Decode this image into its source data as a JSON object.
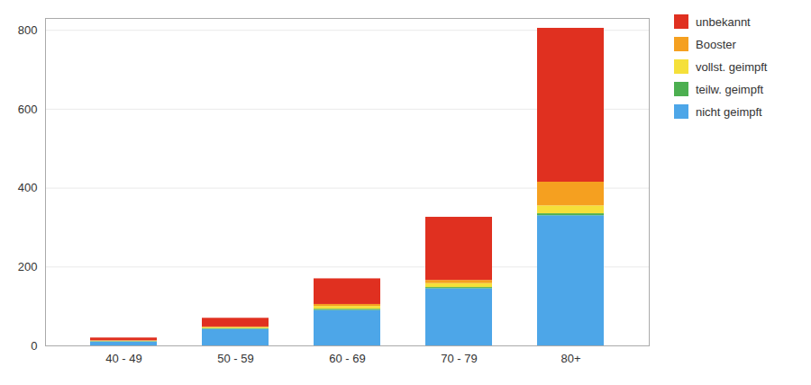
{
  "chart_data": {
    "type": "bar",
    "stacked": true,
    "categories": [
      "40 - 49",
      "50 - 59",
      "60 - 69",
      "70 - 79",
      "80+"
    ],
    "series": [
      {
        "name": "nicht geimpft",
        "color": "#4da6e8",
        "values": [
          10,
          42,
          90,
          145,
          330
        ]
      },
      {
        "name": "teilw. geimpft",
        "color": "#4caf50",
        "values": [
          1,
          2,
          3,
          3,
          5
        ]
      },
      {
        "name": "vollst. geimpft",
        "color": "#f5e03a",
        "values": [
          1,
          2,
          7,
          10,
          20
        ]
      },
      {
        "name": "Booster",
        "color": "#f5a020",
        "values": [
          1,
          2,
          5,
          8,
          60
        ]
      },
      {
        "name": "unbekannt",
        "color": "#e03020",
        "values": [
          7,
          22,
          65,
          160,
          390
        ]
      }
    ],
    "ylim": [
      0,
      830
    ],
    "yticks": [
      0,
      200,
      400,
      600,
      800
    ],
    "grid": true,
    "legend": "right"
  }
}
